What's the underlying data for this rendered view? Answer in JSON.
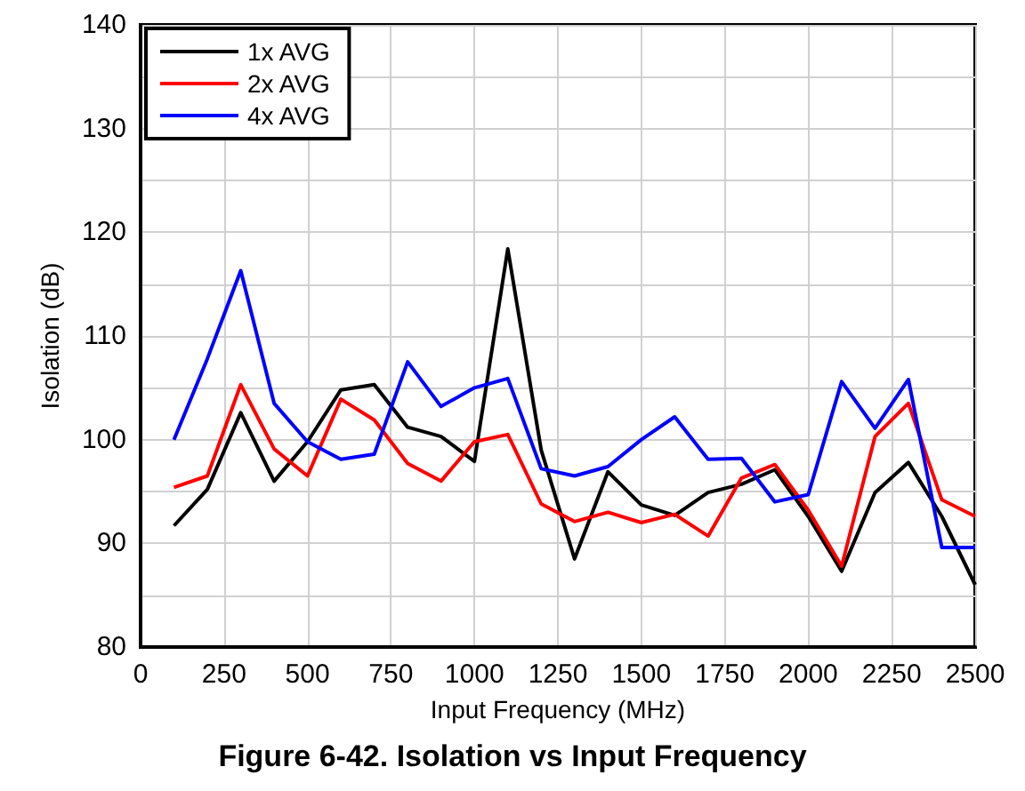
{
  "chart_data": {
    "type": "line",
    "title": "Figure 6-42. Isolation vs Input Frequency",
    "xlabel": "Input Frequency (MHz)",
    "ylabel": "Isolation (dB)",
    "x": [
      100,
      200,
      300,
      400,
      500,
      600,
      700,
      800,
      900,
      1000,
      1100,
      1200,
      1300,
      1400,
      1500,
      1600,
      1700,
      1800,
      1900,
      2000,
      2100,
      2200,
      2300,
      2400,
      2500
    ],
    "series": [
      {
        "name": "1x AVG",
        "color": "#000000",
        "values": [
          91.7,
          95.2,
          102.6,
          96,
          99.8,
          104.8,
          105.3,
          101.2,
          100.3,
          97.9,
          118.4,
          99,
          88.5,
          96.9,
          93.7,
          92.7,
          94.9,
          95.7,
          97.1,
          92.6,
          87.3,
          94.9,
          97.8,
          92.6,
          86
        ]
      },
      {
        "name": "2x AVG",
        "color": "#ff0000",
        "values": [
          95.4,
          96.5,
          105.3,
          99.1,
          96.5,
          103.9,
          101.9,
          97.7,
          96,
          99.8,
          100.5,
          93.8,
          92.1,
          93,
          92,
          92.8,
          90.7,
          96.3,
          97.6,
          93.2,
          87.8,
          100.3,
          103.5,
          94.2,
          92.6
        ]
      },
      {
        "name": "4x AVG",
        "color": "#0000ff",
        "values": [
          100,
          107.8,
          116.3,
          103.5,
          99.8,
          98.1,
          98.6,
          107.5,
          103.2,
          105,
          105.9,
          97.2,
          96.5,
          97.4,
          100,
          102.2,
          98.1,
          98.2,
          94,
          94.7,
          105.6,
          101.1,
          105.8,
          89.6,
          89.6
        ]
      }
    ],
    "xlim": [
      0,
      2500
    ],
    "xticks": [
      0,
      250,
      500,
      750,
      1000,
      1250,
      1500,
      1750,
      2000,
      2250,
      2500
    ],
    "ylim": [
      80,
      140
    ],
    "yticks": [
      80,
      {
        "value": 85,
        "label": null
      },
      90,
      {
        "value": 95,
        "label": null
      },
      100,
      {
        "value": 105,
        "label": null
      },
      110,
      {
        "value": 115,
        "label": null
      },
      120,
      {
        "value": 125,
        "label": null
      },
      130,
      {
        "value": 135,
        "label": null
      },
      140
    ],
    "grid": true,
    "legend": "top left",
    "marker": "none",
    "line_style": "solid"
  }
}
